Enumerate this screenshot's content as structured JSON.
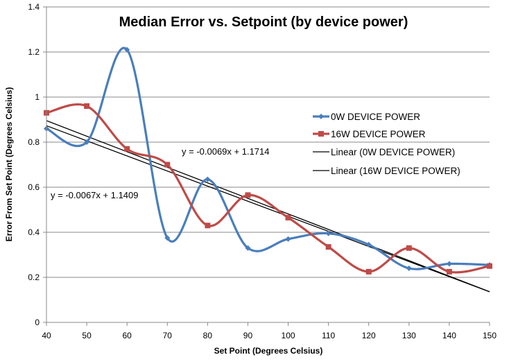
{
  "chart_data": {
    "type": "line",
    "title": "Median Error vs. Setpoint (by device power)",
    "xlabel": "Set Point (Degrees Celsius)",
    "ylabel": "Error From Set Point (Degrees Celsius)",
    "xlim": [
      40,
      150
    ],
    "ylim": [
      0,
      1.4
    ],
    "x_ticks": [
      40,
      50,
      60,
      70,
      80,
      90,
      100,
      110,
      120,
      130,
      140,
      150
    ],
    "y_ticks": [
      0,
      0.2,
      0.4,
      0.6,
      0.8,
      1,
      1.2,
      1.4
    ],
    "grid": "horizontal",
    "legend_position": "right",
    "x": [
      40,
      50,
      60,
      70,
      80,
      90,
      100,
      110,
      120,
      130,
      140,
      150
    ],
    "series": [
      {
        "name": "0W DEVICE POWER",
        "color": "#4a7ebb",
        "marker": "diamond",
        "values": [
          0.86,
          0.8,
          1.21,
          0.375,
          0.635,
          0.33,
          0.37,
          0.395,
          0.345,
          0.24,
          0.26,
          0.255
        ]
      },
      {
        "name": "16W DEVICE POWER",
        "color": "#be4b48",
        "marker": "square",
        "values": [
          0.93,
          0.96,
          0.77,
          0.7,
          0.43,
          0.565,
          0.465,
          0.335,
          0.225,
          0.33,
          0.225,
          0.25
        ]
      }
    ],
    "trendlines": [
      {
        "name": "Linear (0W DEVICE POWER)",
        "slope": -0.0067,
        "intercept": 1.1409,
        "equation": "y = -0.0067x + 1.1409"
      },
      {
        "name": "Linear (16W DEVICE POWER)",
        "slope": -0.0069,
        "intercept": 1.1714,
        "equation": "y = -0.0069x + 1.1714"
      }
    ]
  }
}
